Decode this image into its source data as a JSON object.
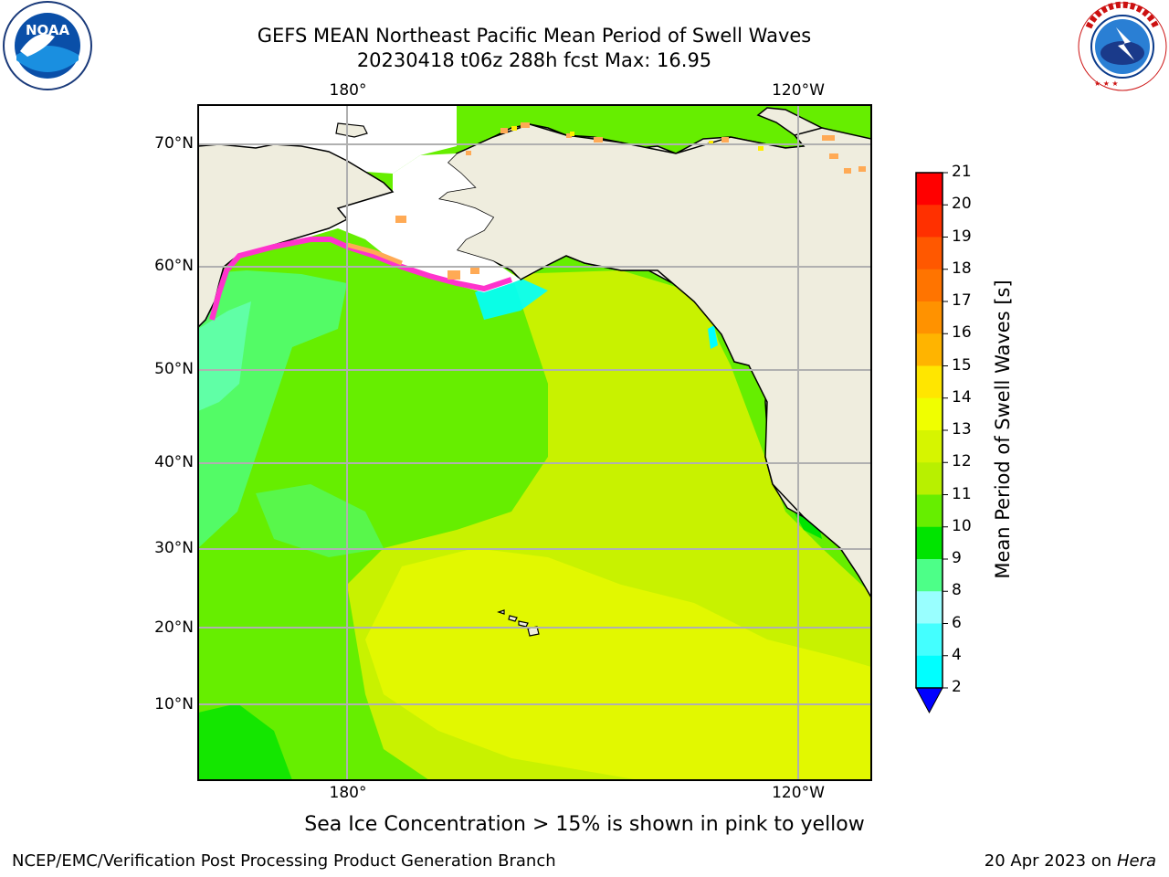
{
  "title_line1": "GEFS MEAN Northeast Pacific Mean Period of Swell Waves",
  "title_line2": "20230418 t06z 288h fcst   Max: 16.95",
  "lon_labels": [
    "180°",
    "120°W"
  ],
  "lat_labels": [
    "70°N",
    "60°N",
    "50°N",
    "40°N",
    "30°N",
    "20°N",
    "10°N"
  ],
  "colorbar": {
    "label": "Mean Period of Swell Waves [s]",
    "ticks": [
      "21",
      "20",
      "19",
      "18",
      "17",
      "16",
      "15",
      "14",
      "13",
      "12",
      "11",
      "10",
      "9",
      "8",
      "6",
      "4",
      "2"
    ],
    "colors": [
      "#ff0000",
      "#ff3000",
      "#ff5800",
      "#ff7400",
      "#ff9200",
      "#ffb400",
      "#ffe600",
      "#f0ff00",
      "#d6f500",
      "#b8f000",
      "#66ee00",
      "#00e400",
      "#4dff88",
      "#99ffff",
      "#44ffff",
      "#00ffff",
      "#00c8ff",
      "#0080ff",
      "#0000ff"
    ]
  },
  "note": "Sea Ice Concentration > 15% is shown in pink to yellow",
  "credit": "NCEP/EMC/Verification Post Processing Product Generation Branch",
  "date_text": "20 Apr 2023 on ",
  "date_machine": "Hera",
  "logos": {
    "noaa_text": "NOAA",
    "noaa_ring": "NATIONAL OCEANIC AND ATMOSPHERIC ADMINISTRATION · U.S. DEPARTMENT OF COMMERCE",
    "nws_ring": "NATIONAL WEATHER SERVICE"
  },
  "colors": {
    "land": "#efedde",
    "ocean_green": "#66ee00",
    "ocean_yellowgreen": "#c8f200",
    "ocean_yellow": "#e2f800",
    "ocean_lightgreen": "#4dff88",
    "ocean_cyan": "#99ffff",
    "seaice_pink": "#ff33cc",
    "seaice_orange": "#ffaa55",
    "grid": "#b0b0b0"
  }
}
